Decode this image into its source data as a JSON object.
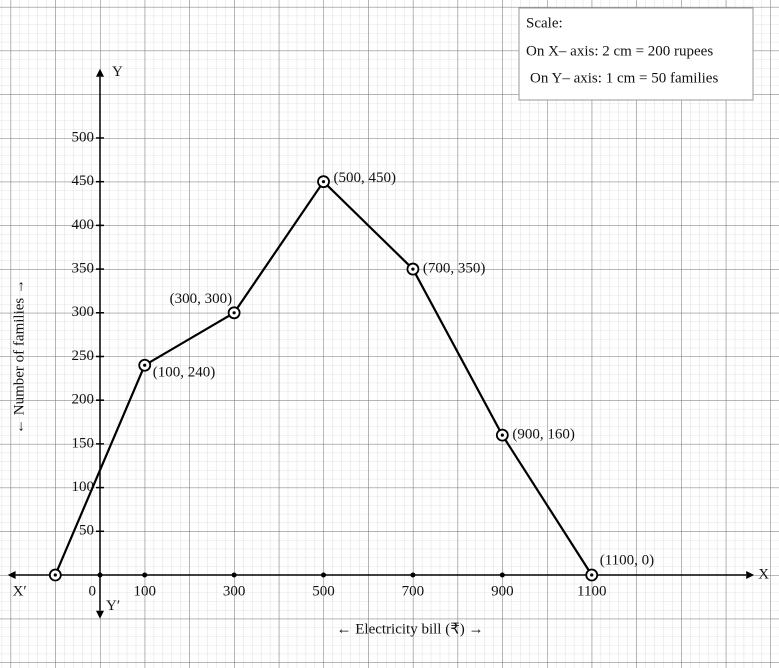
{
  "chart_data": {
    "type": "line",
    "x": [
      -100,
      100,
      300,
      500,
      700,
      900,
      1100
    ],
    "series": [
      {
        "color": "#000000",
        "values": [
          0,
          240,
          300,
          450,
          350,
          160,
          0
        ],
        "point_labels": [
          null,
          "(100, 240)",
          "(300, 300)",
          "(500, 450)",
          "(700, 350)",
          "(900, 160)",
          "(1100, 0)"
        ]
      }
    ],
    "xlim": [
      -200,
      1450
    ],
    "ylim": [
      -50,
      570
    ],
    "xticks": [
      0,
      100,
      300,
      500,
      700,
      900,
      1100
    ],
    "yticks": [
      50,
      100,
      150,
      200,
      250,
      300,
      350,
      400,
      450,
      500
    ],
    "x_label": "← Electricity bill (₹) →",
    "y_label": "← Number of families →",
    "axis_letters": {
      "x": "X",
      "x_neg": "X′",
      "y": "Y",
      "y_neg": "Y′"
    },
    "scale_note": [
      "Scale:",
      "On X– axis: 2 cm = 200 rupees",
      "On Y– axis: 1 cm = 50 families"
    ],
    "grid": true
  }
}
